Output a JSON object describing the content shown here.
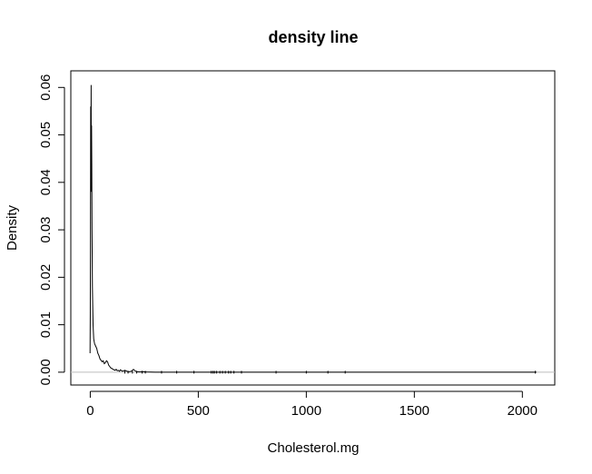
{
  "chart_data": {
    "type": "line",
    "title": "density line",
    "xlabel": "Cholesterol.mg",
    "ylabel": "Density",
    "xlim": [
      -90,
      2150
    ],
    "ylim": [
      -0.0027,
      0.0635
    ],
    "x_ticks": [
      0,
      500,
      1000,
      1500,
      2000
    ],
    "x_tick_labels": [
      "0",
      "500",
      "1000",
      "1500",
      "2000"
    ],
    "y_ticks": [
      0.0,
      0.01,
      0.02,
      0.03,
      0.04,
      0.05,
      0.06
    ],
    "y_tick_labels": [
      "0.00",
      "0.01",
      "0.02",
      "0.03",
      "0.04",
      "0.05",
      "0.06"
    ],
    "grid": false,
    "zero_line": true,
    "line_color": "#000000",
    "zero_line_color": "#bebebe",
    "series": [
      {
        "x": [
          -1,
          0,
          1,
          2,
          3,
          4,
          5,
          6,
          7,
          8,
          10,
          13,
          16,
          20,
          25,
          30,
          35,
          40,
          45,
          50,
          55,
          60,
          65,
          70,
          75,
          80,
          85,
          90,
          95,
          100,
          105,
          110,
          115,
          120,
          125,
          130,
          135,
          140,
          145,
          150,
          160,
          170,
          180,
          190,
          200,
          210,
          220,
          230,
          240,
          260,
          300,
          350,
          400,
          480,
          560,
          600,
          640,
          700,
          900,
          1000,
          1100,
          1200,
          1500,
          2000,
          2065
        ],
        "y": [
          0.004,
          0.012,
          0.03,
          0.056,
          0.045,
          0.0605,
          0.038,
          0.052,
          0.044,
          0.03,
          0.018,
          0.01,
          0.007,
          0.006,
          0.0055,
          0.005,
          0.004,
          0.0035,
          0.0028,
          0.0025,
          0.0022,
          0.0024,
          0.0018,
          0.002,
          0.0024,
          0.0022,
          0.0015,
          0.0012,
          0.0009,
          0.0008,
          0.0006,
          0.0005,
          0.0004,
          0.0006,
          0.0003,
          0.0004,
          0.0002,
          0.0005,
          0.0003,
          0.0002,
          0.0004,
          0.0002,
          0.0001,
          0.0002,
          0.0006,
          0.0002,
          0.0001,
          5e-05,
          0.0001,
          5e-05,
          0.0,
          0.0,
          0.0,
          0.0,
          0.0,
          0.0,
          0.0,
          0.0,
          0.0,
          0.0,
          0.0,
          0.0,
          0.0,
          0.0,
          0.0
        ]
      }
    ],
    "rug_x": [
      160,
      175,
      195,
      215,
      240,
      255,
      330,
      400,
      480,
      560,
      568,
      575,
      585,
      600,
      612,
      625,
      640,
      650,
      665,
      700,
      860,
      1000,
      1100,
      1180,
      2060
    ]
  }
}
